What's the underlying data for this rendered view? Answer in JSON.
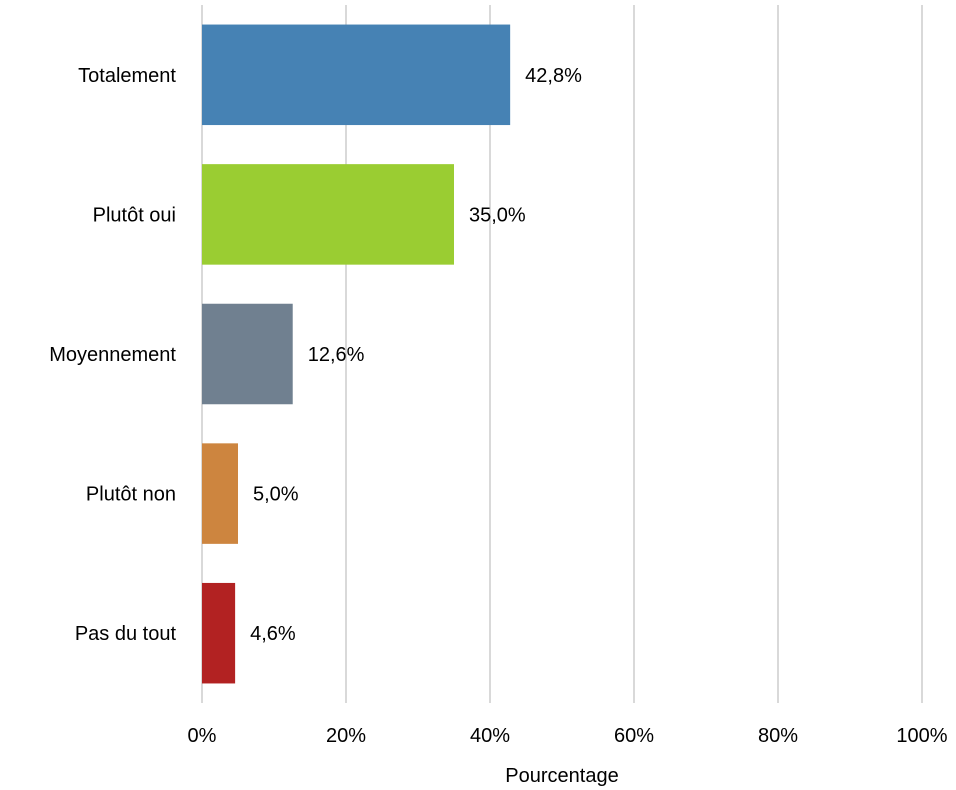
{
  "chart_data": {
    "type": "bar",
    "orientation": "horizontal",
    "categories": [
      "Totalement",
      "Plutôt oui",
      "Moyennement",
      "Plutôt non",
      "Pas du tout"
    ],
    "values": [
      42.8,
      35.0,
      12.6,
      5.0,
      4.6
    ],
    "value_labels": [
      "42,8%",
      "35,0%",
      "12,6%",
      "5,0%",
      "4,6%"
    ],
    "colors": [
      "#4682B4",
      "#9ACD32",
      "#708090",
      "#CD853F",
      "#B22222"
    ],
    "xlabel": "Pourcentage",
    "ylabel": "",
    "title": "",
    "xlim": [
      0,
      100
    ],
    "xticks": [
      0,
      20,
      40,
      60,
      80,
      100
    ],
    "xtick_labels": [
      "0%",
      "20%",
      "40%",
      "60%",
      "80%",
      "100%"
    ],
    "grid": true,
    "legend": false
  }
}
